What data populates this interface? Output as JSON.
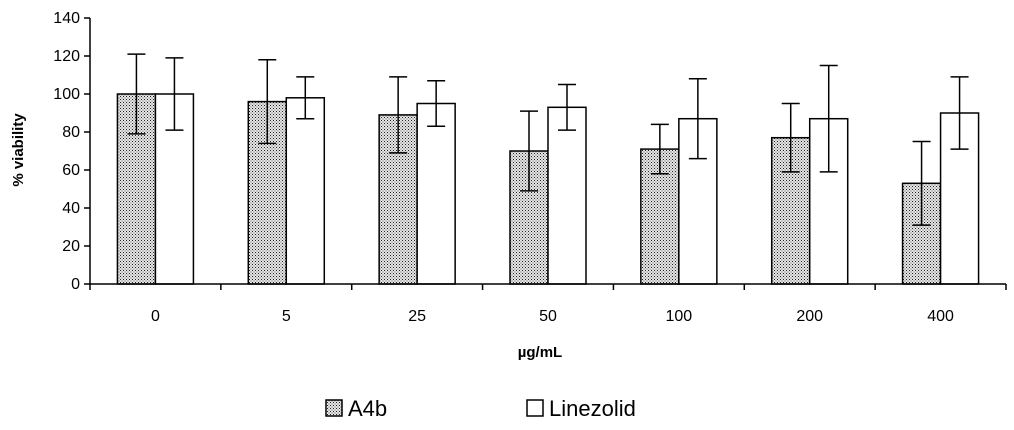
{
  "chart_data": {
    "type": "bar",
    "title": "",
    "xlabel": "µg/mL",
    "ylabel": "% viability",
    "ylim": [
      0,
      140
    ],
    "yticks": [
      0,
      20,
      40,
      60,
      80,
      100,
      120,
      140
    ],
    "grid": false,
    "legend_position": "bottom",
    "categories": [
      "0",
      "5",
      "25",
      "50",
      "100",
      "200",
      "400"
    ],
    "series": [
      {
        "name": "A4b",
        "pattern": "dotted",
        "fill_color": "#d9d9d9",
        "values": [
          100,
          96,
          89,
          70,
          71,
          77,
          53
        ],
        "error": [
          21,
          22,
          20,
          21,
          13,
          18,
          22
        ]
      },
      {
        "name": "Linezolid",
        "pattern": "solid",
        "fill_color": "#ffffff",
        "values": [
          100,
          98,
          95,
          93,
          87,
          87,
          90
        ],
        "error": [
          19,
          11,
          12,
          12,
          21,
          28,
          19
        ]
      }
    ]
  }
}
